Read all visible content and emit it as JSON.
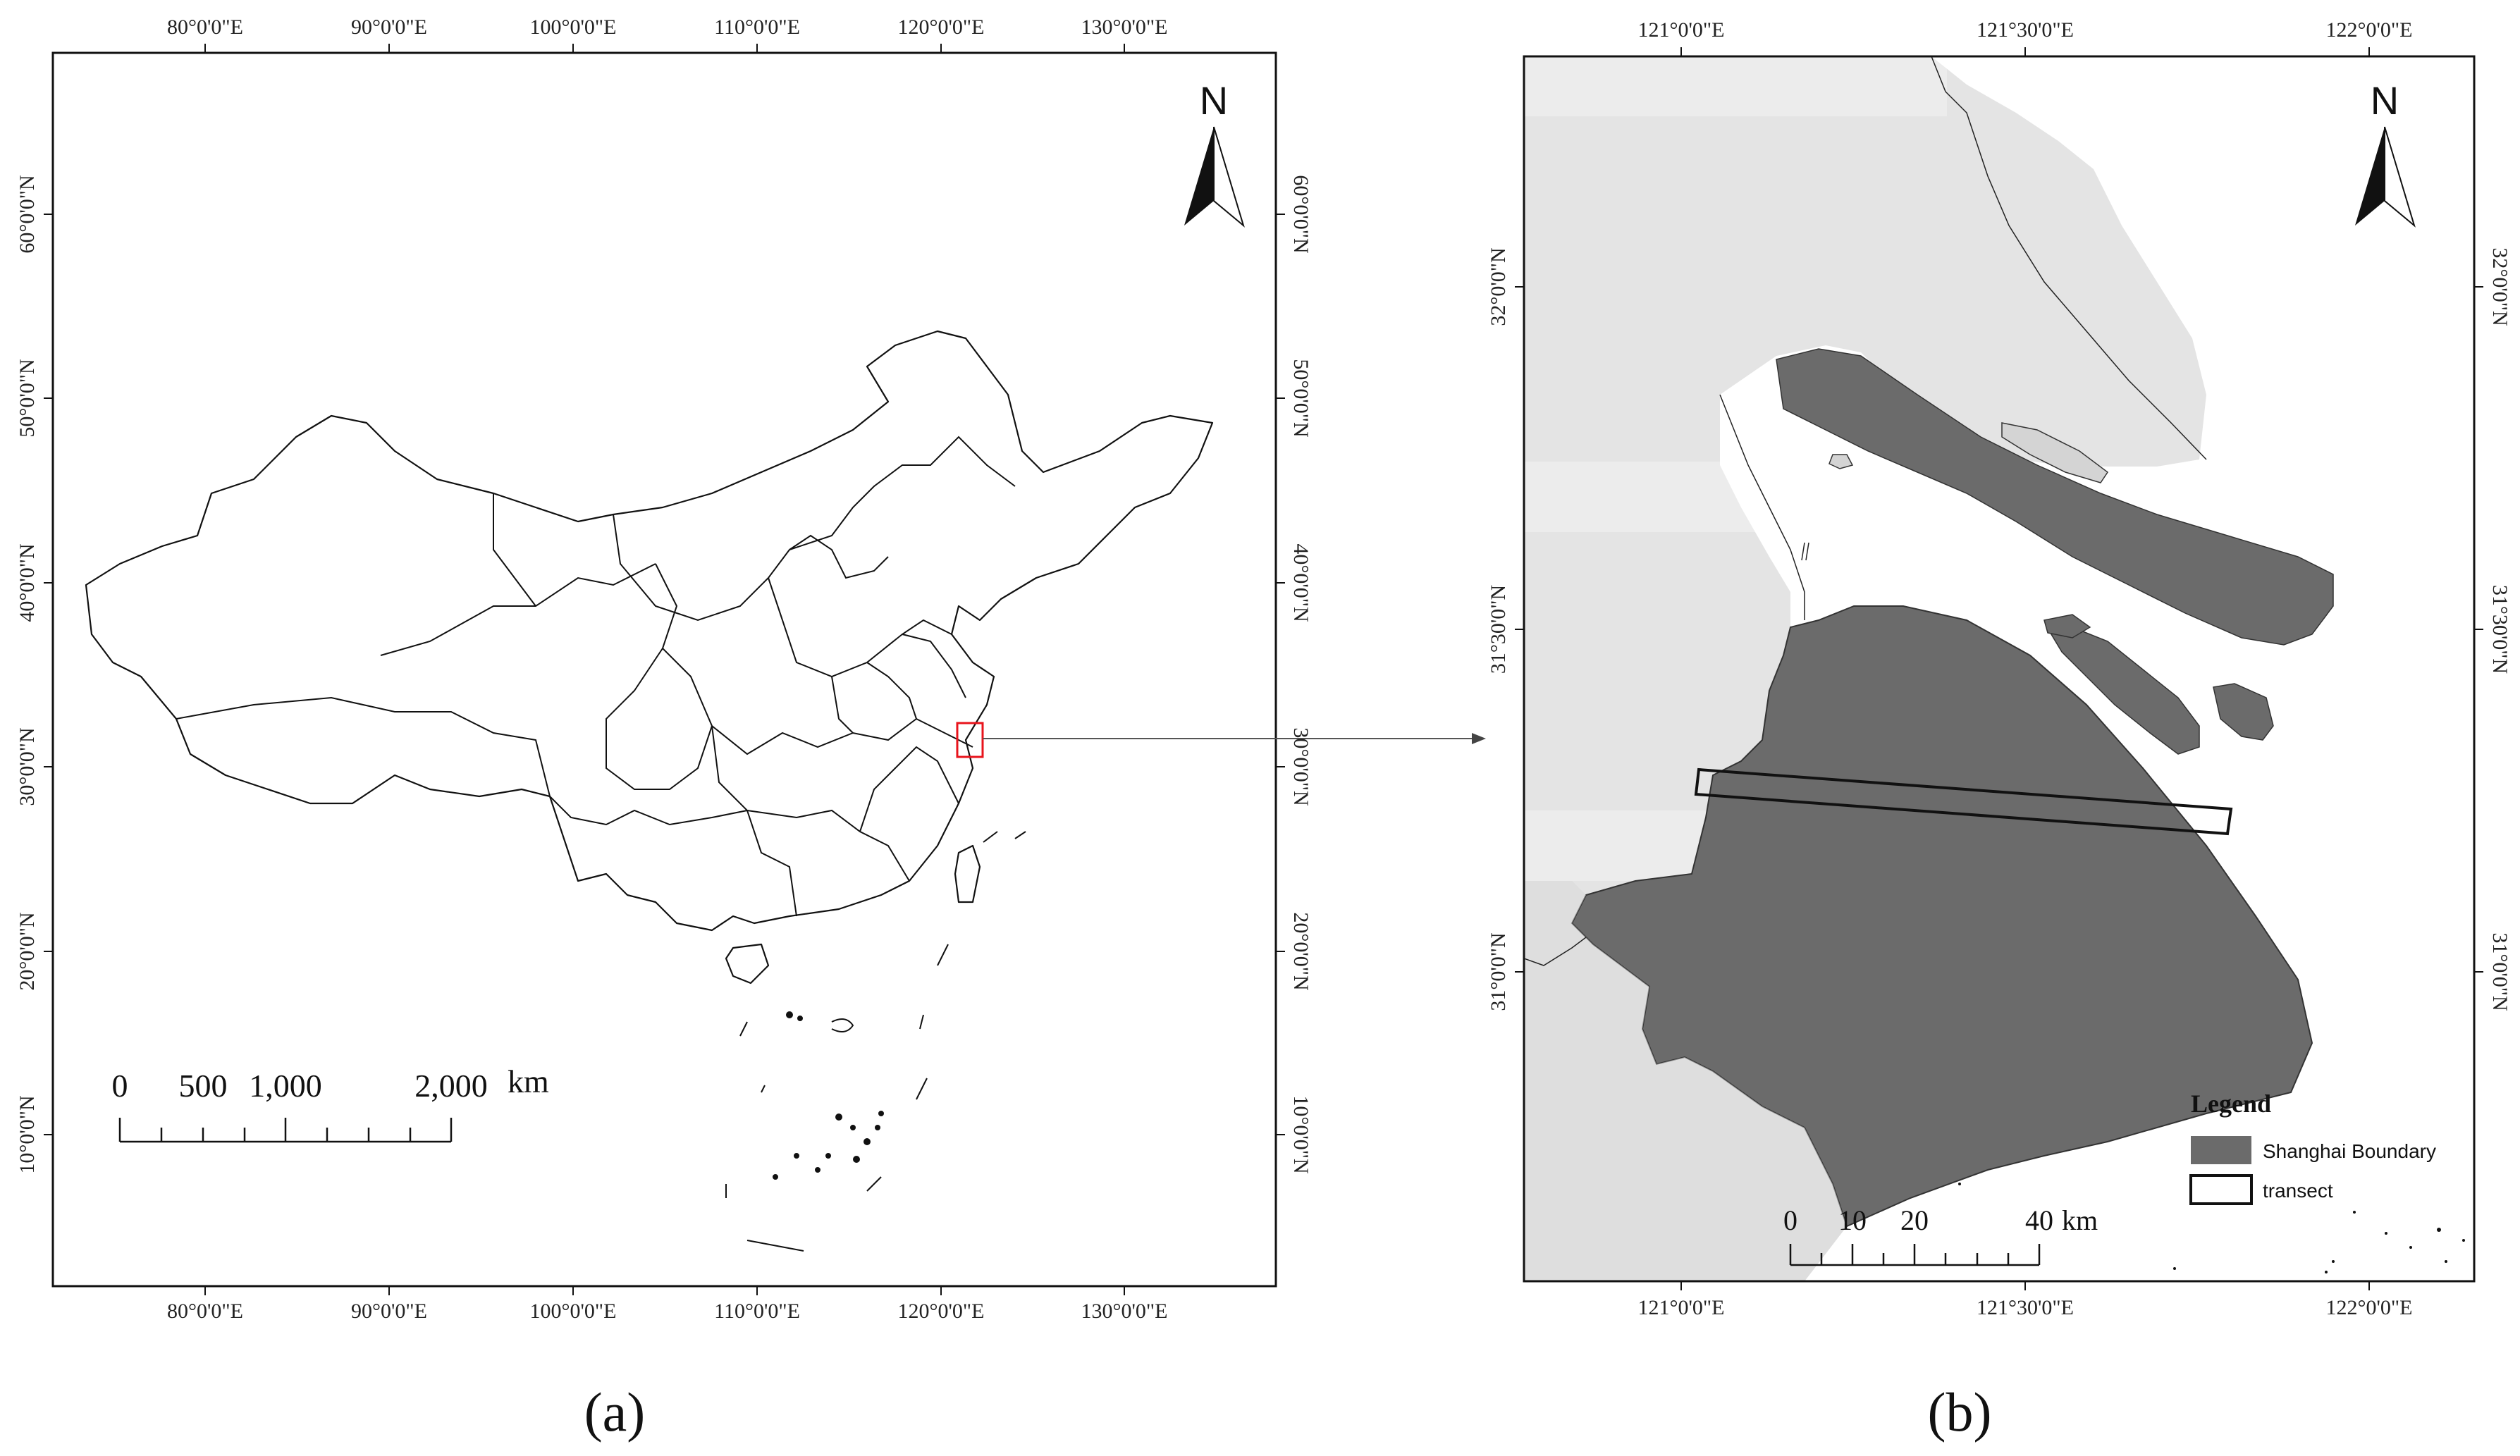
{
  "panel_a": {
    "label": "(a)",
    "north_label": "N",
    "lon_ticks": [
      "80°0'0\"E",
      "90°0'0\"E",
      "100°0'0\"E",
      "110°0'0\"E",
      "120°0'0\"E",
      "130°0'0\"E"
    ],
    "lat_ticks": [
      "10°0'0\"N",
      "20°0'0\"N",
      "30°0'0\"N",
      "40°0'0\"N",
      "50°0'0\"N",
      "60°0'0\"N"
    ],
    "scale_bar": {
      "labels": [
        "0",
        "500",
        "1,000",
        "2,000"
      ],
      "unit": "km"
    }
  },
  "panel_b": {
    "label": "(b)",
    "north_label": "N",
    "lon_ticks": [
      "121°0'0\"E",
      "121°30'0\"E",
      "122°0'0\"E"
    ],
    "lat_ticks": [
      "31°0'0\"N",
      "31°30'0\"N",
      "32°0'0\"N"
    ],
    "scale_bar": {
      "labels": [
        "0",
        "10",
        "20",
        "40"
      ],
      "unit": "km"
    },
    "legend": {
      "title": "Legend",
      "items": [
        "Shanghai Boundary",
        "transect"
      ]
    }
  },
  "colors": {
    "shanghai_fill": "#6b6b6b",
    "background_land": "#e3e3e3",
    "water": "#ffffff",
    "highlight_box": "#e8141c"
  }
}
